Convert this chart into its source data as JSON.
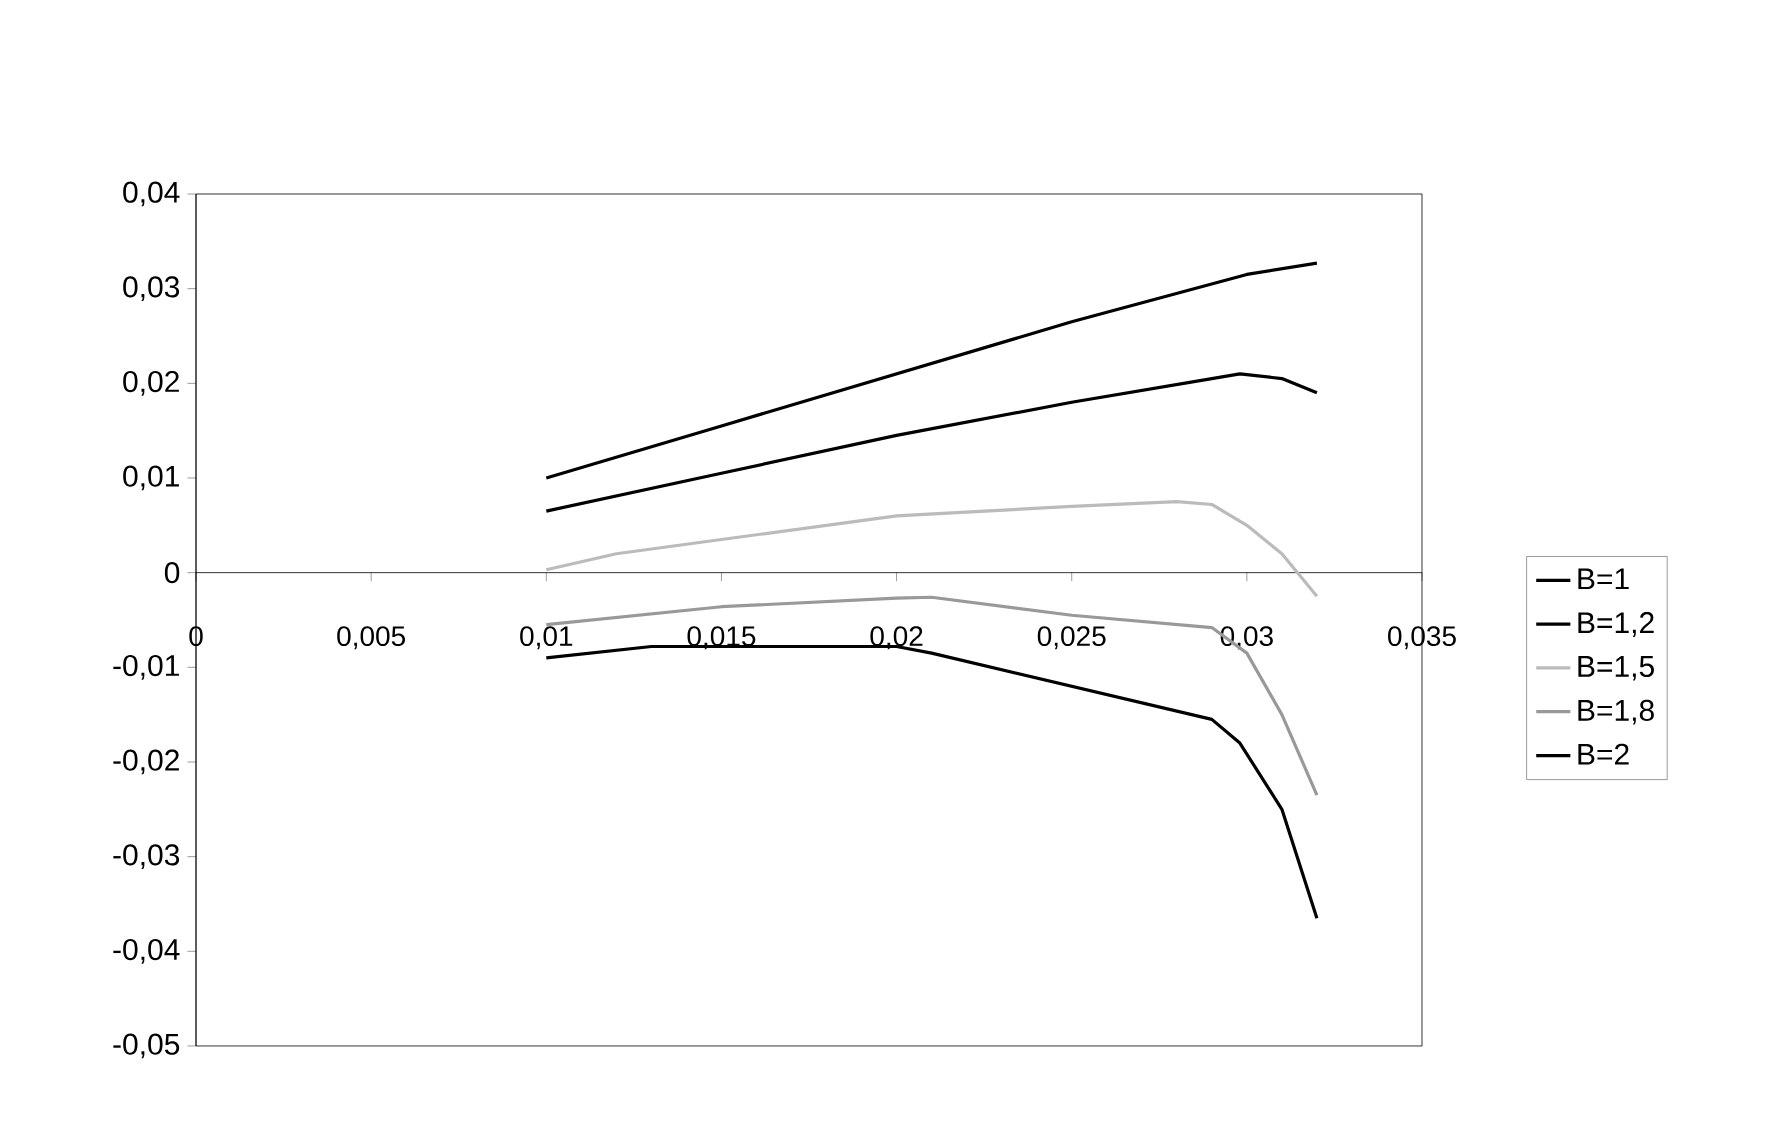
{
  "chart_data": {
    "type": "line",
    "xlim": [
      0,
      0.035
    ],
    "ylim": [
      -0.05,
      0.04
    ],
    "xticks": [
      0,
      {
        "value": 0.005,
        "label": "0,005"
      },
      {
        "value": 0.01,
        "label": "0,01"
      },
      {
        "value": 0.015,
        "label": "0,015"
      },
      {
        "value": 0.02,
        "label": "0,02"
      },
      {
        "value": 0.025,
        "label": "0,025"
      },
      {
        "value": 0.03,
        "label": "0,03"
      },
      {
        "value": 0.035,
        "label": "0,035"
      }
    ],
    "yticks": [
      {
        "value": -0.05,
        "label": "-0,05"
      },
      {
        "value": -0.04,
        "label": "-0,04"
      },
      {
        "value": -0.03,
        "label": "-0,03"
      },
      {
        "value": -0.02,
        "label": "-0,02"
      },
      {
        "value": -0.01,
        "label": "-0,01"
      },
      0,
      {
        "value": 0.01,
        "label": "0,01"
      },
      {
        "value": 0.02,
        "label": "0,02"
      },
      {
        "value": 0.03,
        "label": "0,03"
      },
      {
        "value": 0.04,
        "label": "0,04"
      }
    ],
    "grid": false,
    "legend": "right",
    "marker": "none",
    "line_style": "solid",
    "series": [
      {
        "name": "B=1",
        "color": "#000000",
        "x": [
          0.01,
          0.015,
          0.02,
          0.025,
          0.03,
          0.032
        ],
        "values": [
          0.01,
          0.0155,
          0.021,
          0.0265,
          0.0315,
          0.0327
        ]
      },
      {
        "name": "B=1,2",
        "color": "#000000",
        "x": [
          0.01,
          0.015,
          0.02,
          0.025,
          0.029,
          0.0298,
          0.031,
          0.032
        ],
        "values": [
          0.0065,
          0.0105,
          0.0145,
          0.018,
          0.0205,
          0.021,
          0.0205,
          0.019
        ]
      },
      {
        "name": "B=1,5",
        "color": "#bbbbbb",
        "x": [
          0.01,
          0.012,
          0.015,
          0.02,
          0.025,
          0.028,
          0.029,
          0.03,
          0.031,
          0.032
        ],
        "values": [
          0.0003,
          0.002,
          0.0035,
          0.006,
          0.007,
          0.0075,
          0.0072,
          0.005,
          0.002,
          -0.0025
        ]
      },
      {
        "name": "B=1,8",
        "color": "#999999",
        "x": [
          0.01,
          0.015,
          0.02,
          0.021,
          0.025,
          0.029,
          0.03,
          0.031,
          0.032
        ],
        "values": [
          -0.0055,
          -0.0036,
          -0.0027,
          -0.0026,
          -0.0045,
          -0.0058,
          -0.0085,
          -0.015,
          -0.0235
        ]
      },
      {
        "name": "B=2",
        "color": "#000000",
        "x": [
          0.01,
          0.013,
          0.02,
          0.021,
          0.025,
          0.029,
          0.0298,
          0.031,
          0.032
        ],
        "values": [
          -0.009,
          -0.0078,
          -0.0078,
          -0.0085,
          -0.012,
          -0.0155,
          -0.018,
          -0.025,
          -0.0365
        ]
      }
    ]
  }
}
